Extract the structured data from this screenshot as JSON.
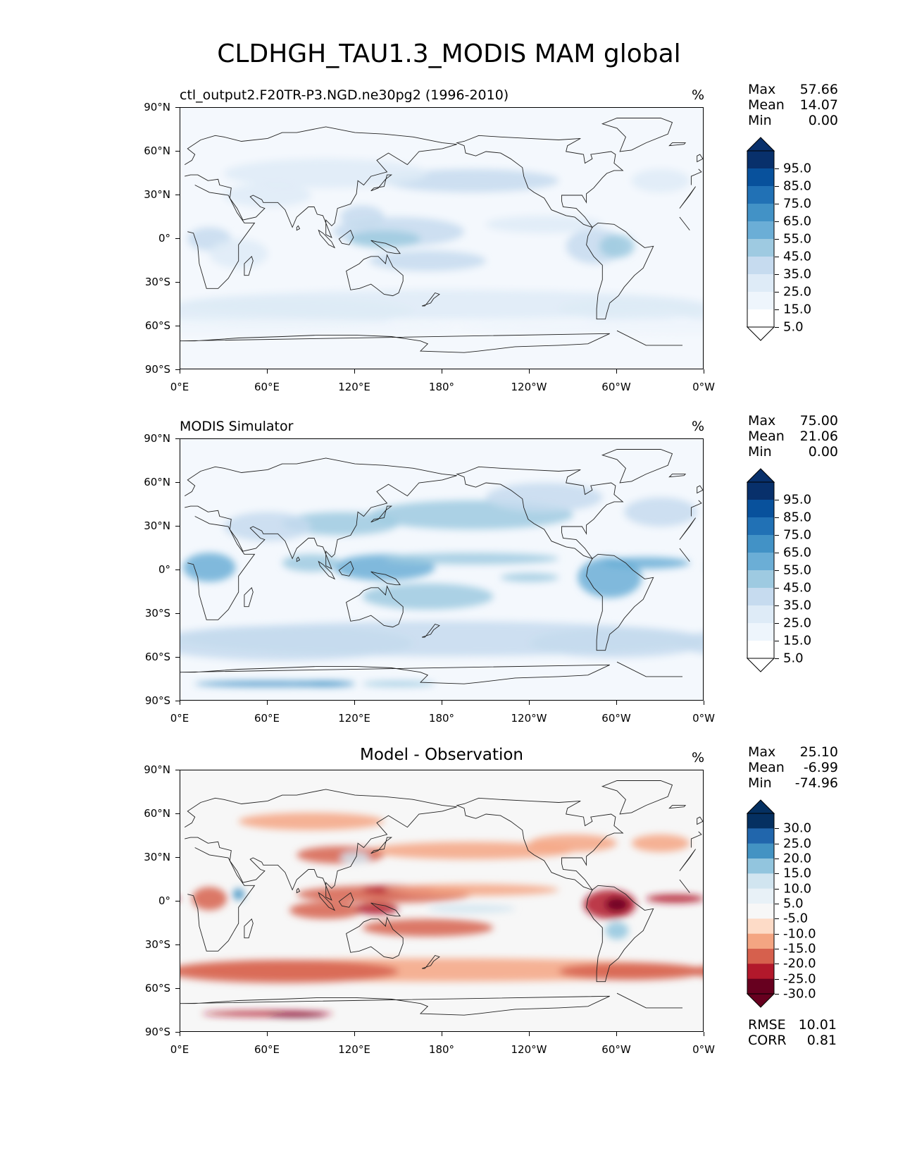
{
  "title": "CLDHGH_TAU1.3_MODIS MAM global",
  "y_ticks": [
    "90°N",
    "60°N",
    "30°N",
    "0°",
    "30°S",
    "60°S",
    "90°S"
  ],
  "x_ticks": [
    "0°E",
    "60°E",
    "120°E",
    "180°",
    "120°W",
    "60°W",
    "0°W"
  ],
  "panels": [
    {
      "label_left": "ctl_output2.F20TR-P3.NGD.ne30pg2 (1996-2010)",
      "label_center": "",
      "units": "%",
      "stats": [
        {
          "name": "Max",
          "value": "57.66"
        },
        {
          "name": "Mean",
          "value": "14.07"
        },
        {
          "name": "Min",
          "value": "0.00"
        }
      ],
      "colorbar": {
        "labels": [
          "95.0",
          "85.0",
          "75.0",
          "65.0",
          "55.0",
          "45.0",
          "35.0",
          "25.0",
          "15.0",
          "5.0"
        ],
        "colors": [
          "#08306b",
          "#08519c",
          "#2171b5",
          "#4292c6",
          "#6baed6",
          "#9ecae1",
          "#c6dbef",
          "#deebf7",
          "#eef5fc",
          "#ffffff"
        ]
      }
    },
    {
      "label_left": "MODIS Simulator",
      "label_center": "",
      "units": "%",
      "stats": [
        {
          "name": "Max",
          "value": "75.00"
        },
        {
          "name": "Mean",
          "value": "21.06"
        },
        {
          "name": "Min",
          "value": "0.00"
        }
      ],
      "colorbar": {
        "labels": [
          "95.0",
          "85.0",
          "75.0",
          "65.0",
          "55.0",
          "45.0",
          "35.0",
          "25.0",
          "15.0",
          "5.0"
        ],
        "colors": [
          "#08306b",
          "#08519c",
          "#2171b5",
          "#4292c6",
          "#6baed6",
          "#9ecae1",
          "#c6dbef",
          "#deebf7",
          "#eef5fc",
          "#ffffff"
        ]
      }
    },
    {
      "label_left": "",
      "label_center": "Model - Observation",
      "units": "%",
      "stats": [
        {
          "name": "Max",
          "value": "25.10"
        },
        {
          "name": "Mean",
          "value": "-6.99"
        },
        {
          "name": "Min",
          "value": "-74.96"
        }
      ],
      "colorbar": {
        "labels": [
          "30.0",
          "25.0",
          "20.0",
          "15.0",
          "10.0",
          "5.0",
          "-5.0",
          "-10.0",
          "-15.0",
          "-20.0",
          "-25.0",
          "-30.0"
        ],
        "colors": [
          "#053061",
          "#2166ac",
          "#4393c3",
          "#92c5de",
          "#d1e5f0",
          "#e8f1f7",
          "#f7f7f7",
          "#fddbc7",
          "#f4a582",
          "#d6604d",
          "#b2182b",
          "#67001f"
        ]
      }
    }
  ],
  "difference_stats": [
    {
      "name": "RMSE",
      "value": "10.01"
    },
    {
      "name": "CORR",
      "value": "0.81"
    }
  ]
}
